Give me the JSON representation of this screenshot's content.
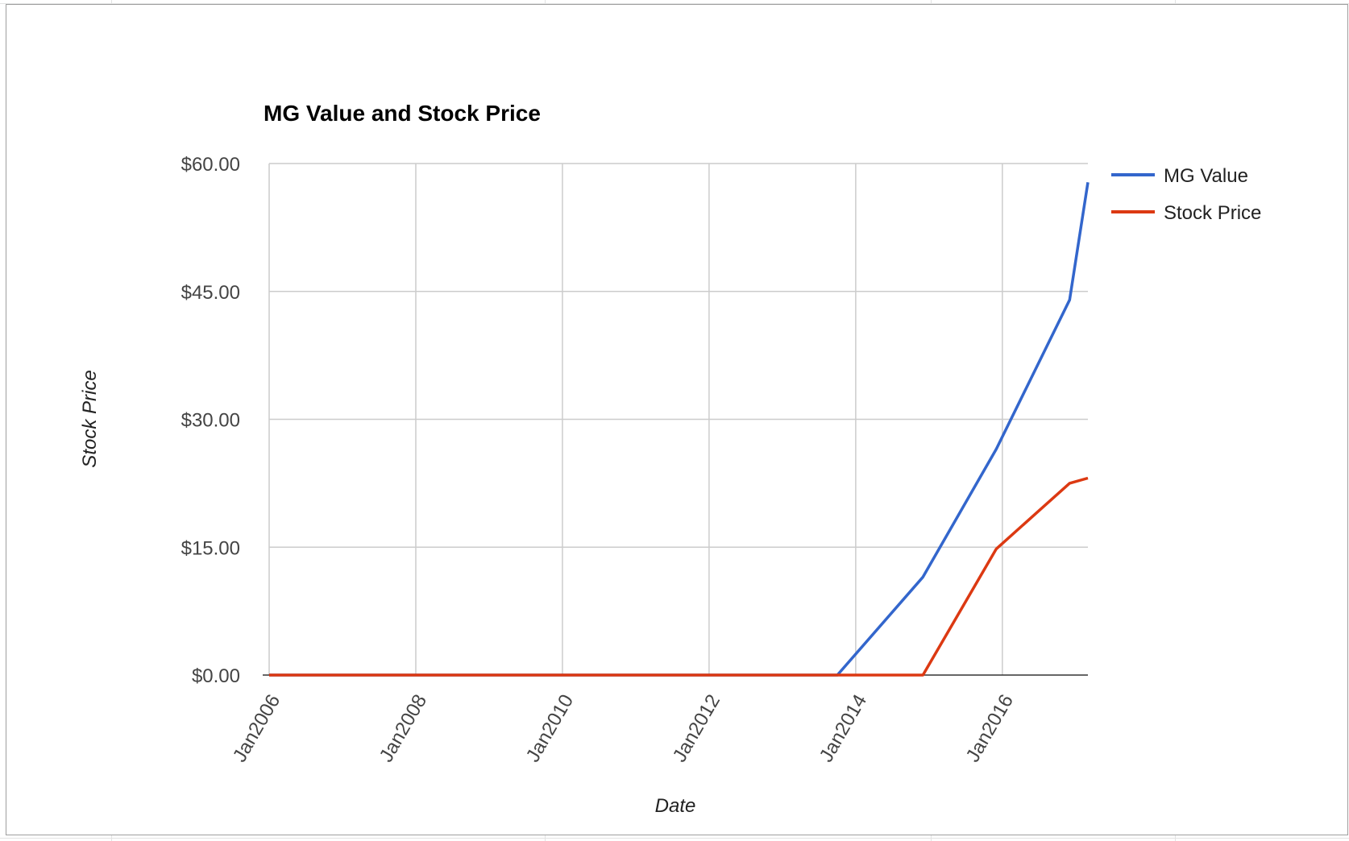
{
  "chart_data": {
    "type": "line",
    "title": "MG Value and Stock Price",
    "xlabel": "Date",
    "ylabel": "Stock Price",
    "x_tick_labels": [
      "Jan2006",
      "Jan2008",
      "Jan2010",
      "Jan2012",
      "Jan2014",
      "Jan2016"
    ],
    "x_tick_values": [
      "2006-01",
      "2008-01",
      "2010-01",
      "2012-01",
      "2014-01",
      "2016-01"
    ],
    "x_range": [
      "2006-01",
      "2017-03"
    ],
    "y_tick_labels": [
      "$0.00",
      "$15.00",
      "$30.00",
      "$45.00",
      "$60.00"
    ],
    "y_tick_values": [
      0,
      15,
      30,
      45,
      60
    ],
    "ylim": [
      0,
      60
    ],
    "grid": true,
    "legend_position": "right",
    "series": [
      {
        "name": "MG Value",
        "color": "#3366cc",
        "points": [
          {
            "x": "2006-01",
            "y": 0
          },
          {
            "x": "2013-10",
            "y": 0
          },
          {
            "x": "2014-12",
            "y": 11.5
          },
          {
            "x": "2015-12",
            "y": 26.5
          },
          {
            "x": "2016-12",
            "y": 44
          },
          {
            "x": "2017-05",
            "y": 57.8
          }
        ]
      },
      {
        "name": "Stock Price",
        "color": "#dc3912",
        "points": [
          {
            "x": "2006-01",
            "y": 0
          },
          {
            "x": "2014-12",
            "y": 0
          },
          {
            "x": "2015-12",
            "y": 14.8
          },
          {
            "x": "2016-12",
            "y": 22.5
          },
          {
            "x": "2017-05",
            "y": 23.1
          }
        ]
      }
    ]
  }
}
